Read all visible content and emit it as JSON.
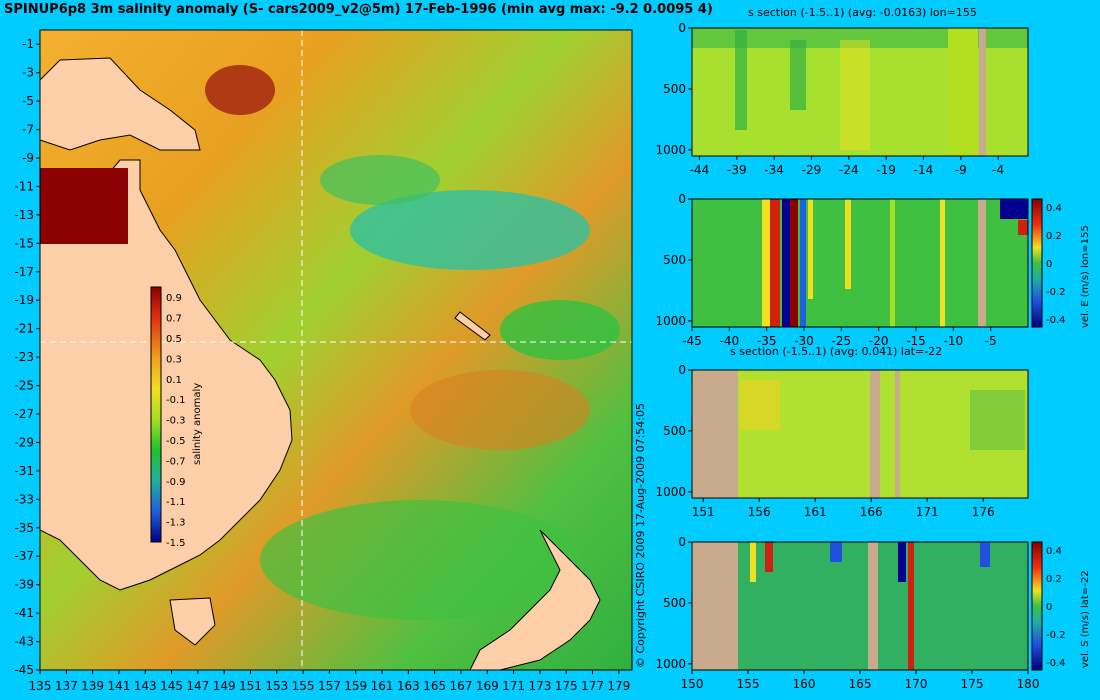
{
  "title": "SPINUP6p8 3m salinity anomaly (S- cars2009_v2@5m) 17-Feb-1996 (min avg max: -9.2 0.0095 4)",
  "copyright": "© Copyright CSIRO 2009   17-Aug-2009 07:54:05",
  "colors": {
    "background": "#00ccff",
    "land": "#fdcfa8",
    "section_land": "#c8aa8c"
  },
  "chart_data": [
    {
      "id": "map",
      "type": "heatmap",
      "title": "SPINUP6p8 3m salinity anomaly (S- cars2009_v2@5m) 17-Feb-1996 (min avg max: -9.2 0.0095 4)",
      "xlim": [
        135,
        180
      ],
      "ylim": [
        -45,
        0
      ],
      "x_ticks": [
        "135",
        "137",
        "139",
        "141",
        "143",
        "145",
        "147",
        "149",
        "151",
        "153",
        "155",
        "157",
        "159",
        "161",
        "163",
        "165",
        "167",
        "169",
        "171",
        "173",
        "175",
        "177",
        "179"
      ],
      "y_ticks": [
        "-1",
        "-3",
        "-5",
        "-7",
        "-9",
        "-11",
        "-13",
        "-15",
        "-17",
        "-19",
        "-21",
        "-23",
        "-25",
        "-27",
        "-29",
        "-31",
        "-33",
        "-35",
        "-37",
        "-39",
        "-41",
        "-43",
        "-45"
      ],
      "crosshair": {
        "lon": 155,
        "lat": -22
      },
      "colorbar": {
        "label": "salinity anomaly",
        "range": [
          -1.5,
          1.0
        ],
        "ticks": [
          "0.9",
          "0.7",
          "0.5",
          "0.3",
          "0.1",
          "-0.1",
          "-0.3",
          "-0.5",
          "-0.7",
          "-0.9",
          "-1.1",
          "-1.3",
          "-1.5"
        ]
      }
    },
    {
      "id": "s-section-lon",
      "type": "heatmap",
      "title": "s section (-1.5..1) (avg: -0.0163) lon=155",
      "xlim": [
        -45,
        0
      ],
      "ylim": [
        1050,
        0
      ],
      "x_ticks": [
        "-44",
        "-39",
        "-34",
        "-29",
        "-24",
        "-19",
        "-14",
        "-9",
        "-4"
      ],
      "y_ticks": [
        "0",
        "500",
        "1000"
      ]
    },
    {
      "id": "vel-e-section",
      "type": "heatmap",
      "title": "",
      "xlim": [
        -45,
        0
      ],
      "ylim": [
        1050,
        0
      ],
      "x_ticks": [
        "-45",
        "-40",
        "-35",
        "-30",
        "-25",
        "-20",
        "-15",
        "-10",
        "-5"
      ],
      "y_ticks": [
        "0",
        "500",
        "1000"
      ],
      "colorbar": {
        "label": "vel. E (m/s) lon=155",
        "ticks": [
          "0.4",
          "0.2",
          "0",
          "-0.2",
          "-0.4"
        ]
      }
    },
    {
      "id": "s-section-lat",
      "type": "heatmap",
      "title": "s section (-1.5..1) (avg: 0.041) lat=-22",
      "xlim": [
        150,
        180
      ],
      "ylim": [
        1050,
        0
      ],
      "x_ticks": [
        "151",
        "156",
        "161",
        "166",
        "171",
        "176"
      ],
      "y_ticks": [
        "0",
        "500",
        "1000"
      ]
    },
    {
      "id": "vel-s-section",
      "type": "heatmap",
      "title": "",
      "xlim": [
        150,
        180
      ],
      "ylim": [
        1050,
        0
      ],
      "x_ticks": [
        "150",
        "155",
        "160",
        "165",
        "170",
        "175",
        "180"
      ],
      "y_ticks": [
        "0",
        "500",
        "1000"
      ],
      "colorbar": {
        "label": "vel. S (m/s) lat=-22",
        "ticks": [
          "0.4",
          "0.2",
          "0",
          "-0.2",
          "-0.4"
        ]
      }
    }
  ]
}
